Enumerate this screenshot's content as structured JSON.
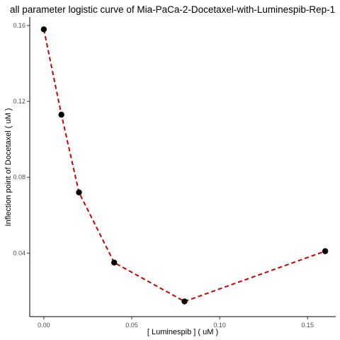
{
  "chart_data": {
    "type": "line",
    "title": "all parameter logistic curve of Mia-PaCa-2-Docetaxel-with-Luminespib-Rep-1",
    "xlabel": "[ Luminespib ] ( uM )",
    "ylabel": "Inflection point of Docetaxel ( uM )",
    "xlim": [
      -0.008,
      0.166
    ],
    "ylim": [
      0.0065,
      0.1645
    ],
    "x_ticks": [
      0.0,
      0.05,
      0.1,
      0.15
    ],
    "x_tick_labels": [
      "0.00",
      "0.05",
      "0.10",
      "0.15"
    ],
    "y_ticks": [
      0.04,
      0.08,
      0.12,
      0.16
    ],
    "y_tick_labels": [
      "0.04",
      "0.08",
      "0.12",
      "0.16"
    ],
    "grid": false,
    "series": [
      {
        "x": [
          0.0,
          0.01,
          0.02,
          0.04,
          0.08,
          0.16
        ],
        "y": [
          0.158,
          0.113,
          0.072,
          0.035,
          0.0145,
          0.041
        ],
        "line_color": "#cc0000",
        "line_style": "dashed",
        "marker_color": "#000000"
      }
    ]
  }
}
